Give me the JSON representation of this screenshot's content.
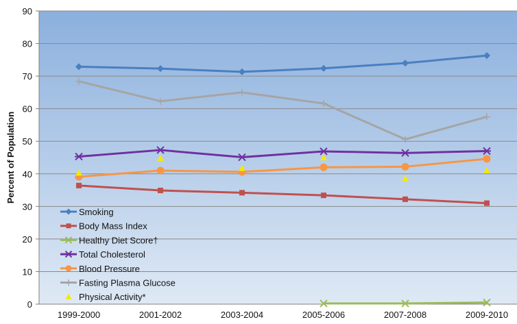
{
  "chart_data": {
    "type": "line",
    "ylabel": "Percent of Population",
    "ylim": [
      0,
      90
    ],
    "yticks": [
      0,
      10,
      20,
      30,
      40,
      50,
      60,
      70,
      80,
      90
    ],
    "categories": [
      "1999-2000",
      "2001-2002",
      "2003-2004",
      "2005-2006",
      "2007-2008",
      "2009-2010"
    ],
    "grid": true,
    "legend": "bottom-left",
    "series": [
      {
        "name": "Smoking",
        "color": "#4a7fc1",
        "marker": "diamond",
        "line": true,
        "values": [
          72.9,
          72.3,
          71.3,
          72.4,
          74.0,
          76.3
        ]
      },
      {
        "name": "Body Mass Index",
        "color": "#c0504d",
        "marker": "square",
        "line": true,
        "values": [
          36.4,
          34.9,
          34.2,
          33.4,
          32.2,
          31.0
        ]
      },
      {
        "name": "Healthy Diet Score†",
        "color": "#9bbb59",
        "marker": "x",
        "line": true,
        "values": [
          null,
          null,
          null,
          0.2,
          0.2,
          0.5
        ]
      },
      {
        "name": "Total Cholesterol",
        "color": "#7030a0",
        "marker": "star",
        "line": true,
        "values": [
          45.3,
          47.3,
          45.1,
          46.9,
          46.4,
          47.0
        ]
      },
      {
        "name": "Blood Pressure",
        "color": "#f79646",
        "marker": "circle",
        "line": true,
        "values": [
          39.1,
          41.0,
          40.6,
          42.0,
          42.2,
          44.6
        ]
      },
      {
        "name": "Fasting Plasma Glucose",
        "color": "#a5a5a5",
        "marker": "plus",
        "line": true,
        "values": [
          68.4,
          62.3,
          65.0,
          61.6,
          50.6,
          57.5
        ]
      },
      {
        "name": "Physical Activity*",
        "color": "#f2e90c",
        "marker": "triangle",
        "line": false,
        "values": [
          40.3,
          44.8,
          41.7,
          45.0,
          38.5,
          41.0
        ]
      }
    ]
  }
}
